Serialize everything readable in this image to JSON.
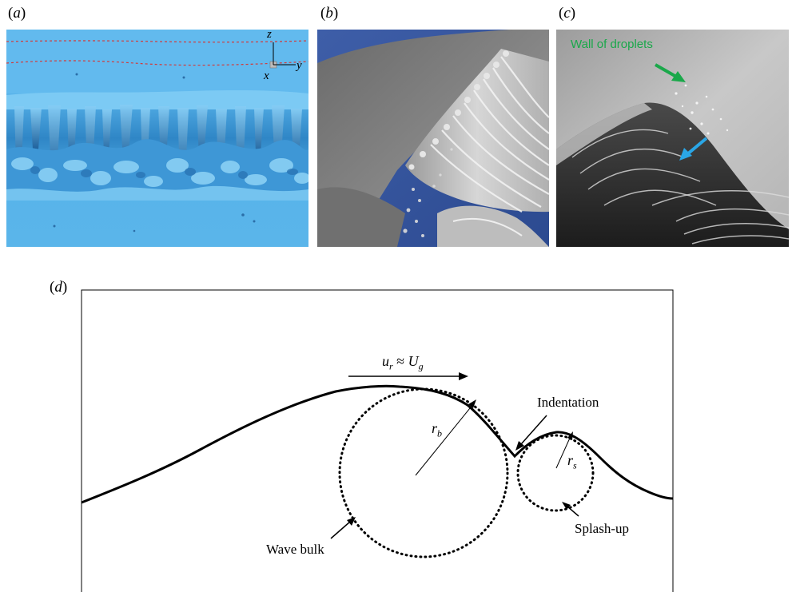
{
  "panels": {
    "a": {
      "label_open": "(",
      "label_letter": "a",
      "label_close": ")",
      "axes": {
        "z": "z",
        "x": "x",
        "y": "y"
      }
    },
    "b": {
      "label_open": "(",
      "label_letter": "b",
      "label_close": ")"
    },
    "c": {
      "label_open": "(",
      "label_letter": "c",
      "label_close": ")",
      "annotation": "Wall of droplets",
      "arrow_colors": {
        "green": "#1aa84a",
        "blue": "#2aa6e6"
      }
    },
    "d": {
      "label_open": "(",
      "label_letter": "d",
      "label_close": ")",
      "velocity_label": {
        "u": "u",
        "r_sub": "r",
        "approx": " ≈ ",
        "U": "U",
        "g_sub": "g"
      },
      "rb_label": {
        "r": "r",
        "sub": "b"
      },
      "rs_label": {
        "r": "r",
        "sub": "s"
      },
      "indentation": "Indentation",
      "wave_bulk": "Wave bulk",
      "splash_up": "Splash-up"
    }
  }
}
